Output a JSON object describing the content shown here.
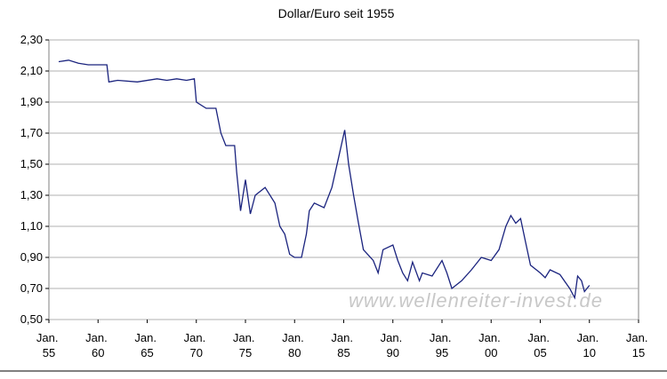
{
  "chart_data": {
    "type": "line",
    "title": "Dollar/Euro seit 1955",
    "annotation": "www.wellenreiter-invest.de",
    "xlim": [
      1955,
      2015
    ],
    "ylim": [
      0.5,
      2.3
    ],
    "yticks": [
      {
        "value": 0.5,
        "label": "0,50"
      },
      {
        "value": 0.7,
        "label": "0,70"
      },
      {
        "value": 0.9,
        "label": "0,90"
      },
      {
        "value": 1.1,
        "label": "1,10"
      },
      {
        "value": 1.3,
        "label": "1,30"
      },
      {
        "value": 1.5,
        "label": "1,50"
      },
      {
        "value": 1.7,
        "label": "1,70"
      },
      {
        "value": 1.9,
        "label": "1,90"
      },
      {
        "value": 2.1,
        "label": "2,10"
      },
      {
        "value": 2.3,
        "label": "2,30"
      }
    ],
    "xticks": [
      {
        "value": 1955,
        "label": "Jan. 55"
      },
      {
        "value": 1960,
        "label": "Jan. 60"
      },
      {
        "value": 1965,
        "label": "Jan. 65"
      },
      {
        "value": 1970,
        "label": "Jan. 70"
      },
      {
        "value": 1975,
        "label": "Jan. 75"
      },
      {
        "value": 1980,
        "label": "Jan. 80"
      },
      {
        "value": 1985,
        "label": "Jan. 85"
      },
      {
        "value": 1990,
        "label": "Jan. 90"
      },
      {
        "value": 1995,
        "label": "Jan. 95"
      },
      {
        "value": 2000,
        "label": "Jan. 00"
      },
      {
        "value": 2005,
        "label": "Jan. 05"
      },
      {
        "value": 2010,
        "label": "Jan. 10"
      },
      {
        "value": 2015,
        "label": "Jan. 15"
      }
    ],
    "grid": true,
    "series": [
      {
        "color": "#1a237e",
        "x": [
          1956,
          1957,
          1958,
          1959,
          1960,
          1960.9,
          1961.1,
          1962,
          1964,
          1966,
          1967,
          1968,
          1969,
          1969.8,
          1970,
          1971,
          1972,
          1972.5,
          1973,
          1973.9,
          1974.1,
          1974.5,
          1975,
          1975.5,
          1976,
          1977,
          1978,
          1978.5,
          1979,
          1979.5,
          1980,
          1980.7,
          1981.2,
          1981.5,
          1982,
          1983,
          1983.8,
          1984.5,
          1985.1,
          1985.5,
          1986,
          1986.5,
          1987,
          1988,
          1988.5,
          1989,
          1990,
          1990.5,
          1991,
          1991.5,
          1992,
          1992.7,
          1993,
          1994,
          1995,
          1995.5,
          1996,
          1997,
          1998,
          1999,
          2000,
          2000.8,
          2001.5,
          2002,
          2002.5,
          2003,
          2003.5,
          2004,
          2005,
          2005.5,
          2006,
          2007,
          2008,
          2008.5,
          2008.8,
          2009.2,
          2009.5,
          2010
        ],
        "values": [
          2.16,
          2.17,
          2.15,
          2.14,
          2.14,
          2.14,
          2.03,
          2.04,
          2.03,
          2.05,
          2.04,
          2.05,
          2.04,
          2.05,
          1.9,
          1.86,
          1.86,
          1.7,
          1.62,
          1.62,
          1.45,
          1.2,
          1.4,
          1.18,
          1.3,
          1.35,
          1.25,
          1.1,
          1.05,
          0.92,
          0.9,
          0.9,
          1.05,
          1.2,
          1.25,
          1.22,
          1.35,
          1.55,
          1.72,
          1.5,
          1.3,
          1.12,
          0.95,
          0.88,
          0.8,
          0.95,
          0.98,
          0.88,
          0.8,
          0.75,
          0.87,
          0.75,
          0.8,
          0.78,
          0.88,
          0.8,
          0.7,
          0.75,
          0.82,
          0.9,
          0.88,
          0.95,
          1.1,
          1.17,
          1.12,
          1.15,
          1,
          0.85,
          0.8,
          0.77,
          0.82,
          0.79,
          0.7,
          0.64,
          0.78,
          0.75,
          0.68,
          0.72
        ]
      }
    ]
  }
}
